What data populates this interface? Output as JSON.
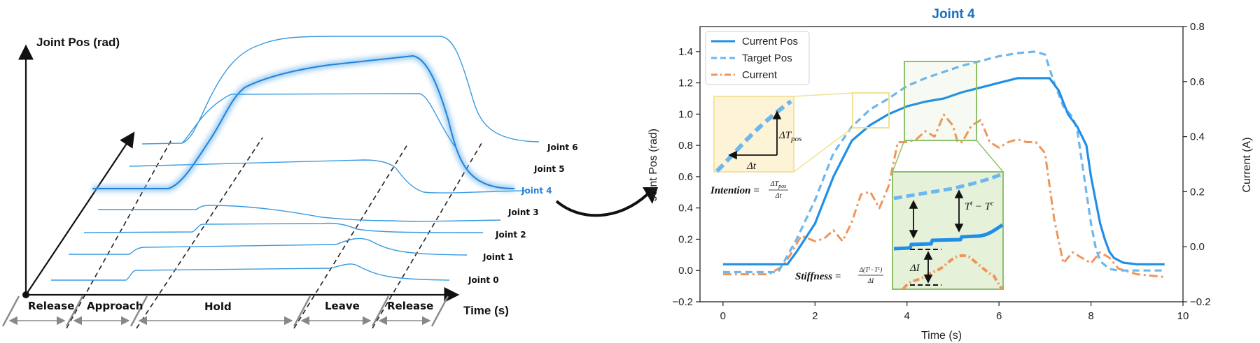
{
  "left_panel": {
    "y_axis_label": "Joint Pos (rad)",
    "x_axis_label": "Time (s)",
    "joints": [
      "Joint 0",
      "Joint 1",
      "Joint 2",
      "Joint 3",
      "Joint 4",
      "Joint 5",
      "Joint 6"
    ],
    "highlighted_joint": "Joint 4",
    "phases": [
      "Release",
      "Approach",
      "Hold",
      "Leave",
      "Release"
    ]
  },
  "right_panel": {
    "annotations": {
      "delta_t_pos": "ΔT",
      "delta_t_pos_sub": "pos",
      "delta_t": "Δt",
      "intention_label": "Intention",
      "intention_num": "ΔT",
      "intention_num_sub": "pos",
      "intention_den": "Δt",
      "tt_minus_tc": "T",
      "tt_sup": "t",
      "tc_sup": "c",
      "delta_i": "ΔI",
      "stiffness_label": "Stiffness",
      "stiffness_num": "Δ(T",
      "stiffness_den": "ΔI"
    }
  },
  "colors": {
    "current_pos": "#1f8fe8",
    "target_pos": "#6cb7ee",
    "current": "#f0955a",
    "joint4_title": "#1a6fc2",
    "intention_box": "#f3e3a0",
    "stiffness_box": "#8fc06a"
  },
  "chart_data": {
    "type": "line",
    "title": "Joint 4",
    "xlabel": "Time (s)",
    "ylabel": "Joint Pos (rad)",
    "y2label": "Current (A)",
    "xlim": [
      -0.5,
      10
    ],
    "ylim": [
      -0.2,
      1.56
    ],
    "y2lim": [
      -0.2,
      0.8
    ],
    "x_ticks": [
      "0",
      "2",
      "4",
      "6",
      "8",
      "10"
    ],
    "y_ticks": [
      "−0.2",
      "0.0",
      "0.2",
      "0.4",
      "0.6",
      "0.8",
      "1.0",
      "1.2",
      "1.4"
    ],
    "y2_ticks": [
      "−0.2",
      "0.0",
      "0.2",
      "0.4",
      "0.6",
      "0.8"
    ],
    "legend_position": "top-left",
    "grid": false,
    "series": [
      {
        "name": "Current Pos",
        "axis": "left",
        "style": "solid",
        "x": [
          0,
          1.4,
          1.6,
          2.0,
          2.4,
          2.8,
          3.2,
          3.6,
          4.0,
          4.4,
          4.8,
          5.2,
          5.6,
          6.0,
          6.4,
          6.8,
          7.1,
          7.3,
          7.5,
          7.7,
          7.9,
          8.0,
          8.1,
          8.2,
          8.3,
          8.4,
          8.5,
          8.7,
          9.0,
          9.6
        ],
        "y": [
          0.04,
          0.04,
          0.12,
          0.3,
          0.6,
          0.83,
          0.93,
          1.0,
          1.05,
          1.08,
          1.1,
          1.14,
          1.17,
          1.2,
          1.23,
          1.23,
          1.23,
          1.15,
          1.0,
          0.92,
          0.8,
          0.6,
          0.45,
          0.3,
          0.2,
          0.12,
          0.08,
          0.05,
          0.04,
          0.04
        ]
      },
      {
        "name": "Target Pos",
        "axis": "left",
        "style": "dashed",
        "x": [
          0,
          1.2,
          1.6,
          2.0,
          2.4,
          2.8,
          3.2,
          3.6,
          4.0,
          4.4,
          4.8,
          5.2,
          5.6,
          6.0,
          6.4,
          6.8,
          7.0,
          7.2,
          7.4,
          7.6,
          7.7,
          7.8,
          7.9,
          8.0,
          8.1,
          8.2,
          8.4,
          8.6,
          9.0,
          9.6
        ],
        "y": [
          -0.01,
          -0.01,
          0.2,
          0.45,
          0.75,
          0.92,
          1.03,
          1.1,
          1.18,
          1.23,
          1.27,
          1.31,
          1.34,
          1.37,
          1.39,
          1.4,
          1.38,
          1.2,
          1.05,
          0.98,
          0.9,
          0.7,
          0.5,
          0.3,
          0.15,
          0.06,
          0.01,
          0.0,
          0.0,
          0.0
        ]
      },
      {
        "name": "Current",
        "axis": "right",
        "style": "dashdot",
        "x": [
          0,
          1.0,
          1.3,
          1.5,
          1.7,
          2.0,
          2.2,
          2.4,
          2.6,
          2.8,
          3.0,
          3.2,
          3.4,
          3.6,
          3.8,
          4.0,
          4.2,
          4.4,
          4.6,
          4.8,
          5.0,
          5.1,
          5.2,
          5.4,
          5.6,
          5.8,
          6.0,
          6.2,
          6.4,
          6.6,
          6.8,
          7.0,
          7.2,
          7.4,
          7.6,
          7.8,
          8.0,
          8.2,
          8.4,
          8.6,
          8.8,
          9.0,
          9.6
        ],
        "y": [
          -0.1,
          -0.1,
          -0.07,
          -0.02,
          0.04,
          0.02,
          0.03,
          0.06,
          0.02,
          0.09,
          0.19,
          0.2,
          0.14,
          0.22,
          0.38,
          0.38,
          0.39,
          0.42,
          0.4,
          0.48,
          0.44,
          0.38,
          0.38,
          0.44,
          0.46,
          0.38,
          0.36,
          0.38,
          0.39,
          0.38,
          0.38,
          0.34,
          0.1,
          -0.06,
          -0.02,
          -0.04,
          -0.06,
          -0.02,
          -0.04,
          -0.08,
          -0.09,
          -0.1,
          -0.11
        ]
      }
    ]
  }
}
